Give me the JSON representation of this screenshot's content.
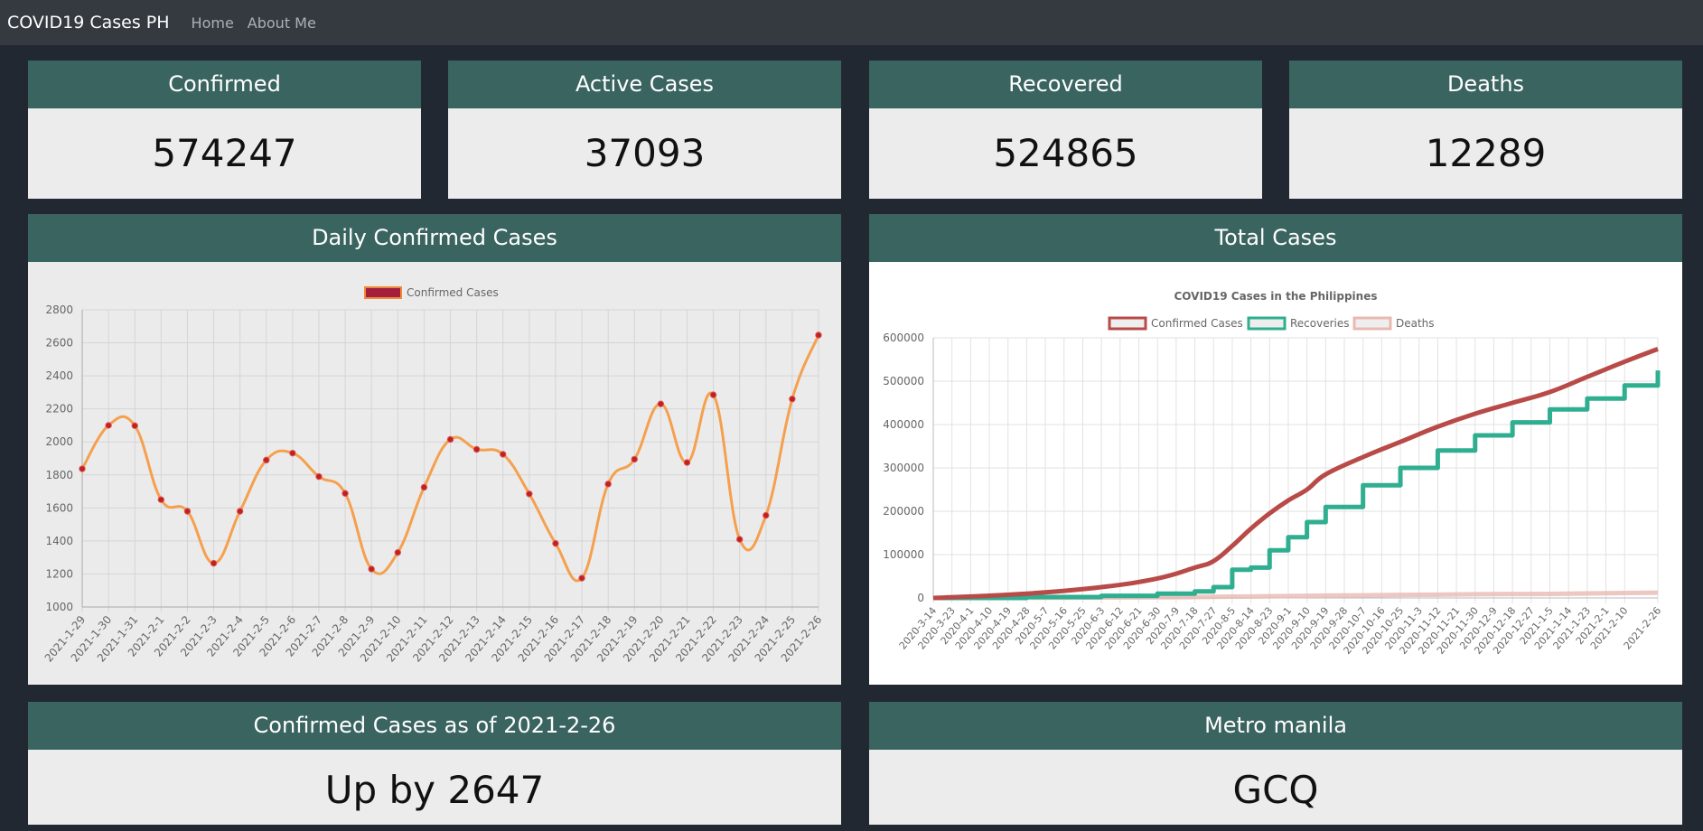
{
  "navbar": {
    "brand": "COVID19 Cases PH",
    "links": [
      "Home",
      "About Me"
    ]
  },
  "stats": [
    {
      "title": "Confirmed",
      "value": "574247"
    },
    {
      "title": "Active Cases",
      "value": "37093"
    },
    {
      "title": "Recovered",
      "value": "524865"
    },
    {
      "title": "Deaths",
      "value": "12289"
    }
  ],
  "daily_card": {
    "title": "Daily Confirmed Cases"
  },
  "total_card": {
    "title": "Total Cases"
  },
  "bottom": [
    {
      "title": "Confirmed Cases as of 2021-2-26",
      "value": "Up by 2647"
    },
    {
      "title": "Metro manila",
      "value": "GCQ"
    }
  ],
  "colors": {
    "page_bg": "#222831",
    "navbar_bg": "#343a40",
    "card_header": "#3a6460",
    "daily_line": "#f5a04e",
    "daily_point": "#c0211f",
    "confirmed_line": "#b84a47",
    "recoveries_line": "#2fae90",
    "deaths_line": "#e9b9b1"
  },
  "chart_data": [
    {
      "type": "line",
      "legend": [
        "Confirmed Cases"
      ],
      "categories": [
        "2021-1-29",
        "2021-1-30",
        "2021-1-31",
        "2021-2-1",
        "2021-2-2",
        "2021-2-3",
        "2021-2-4",
        "2021-2-5",
        "2021-2-6",
        "2021-2-7",
        "2021-2-8",
        "2021-2-9",
        "2021-2-10",
        "2021-2-11",
        "2021-2-12",
        "2021-2-13",
        "2021-2-14",
        "2021-2-15",
        "2021-2-16",
        "2021-2-17",
        "2021-2-18",
        "2021-2-19",
        "2021-2-20",
        "2021-2-21",
        "2021-2-22",
        "2021-2-23",
        "2021-2-24",
        "2021-2-25",
        "2021-2-26"
      ],
      "series": [
        {
          "name": "Confirmed Cases",
          "values": [
            1837,
            2100,
            2098,
            1650,
            1580,
            1265,
            1580,
            1890,
            1932,
            1790,
            1688,
            1230,
            1330,
            1725,
            2015,
            1955,
            1925,
            1685,
            1385,
            1175,
            1745,
            1895,
            2230,
            1875,
            2285,
            1410,
            1555,
            2260,
            2647
          ]
        }
      ],
      "ylim": [
        1000,
        2800
      ],
      "yticks": [
        1000,
        1200,
        1400,
        1600,
        1800,
        2000,
        2200,
        2400,
        2600,
        2800
      ],
      "grid": true,
      "legend_position": "top"
    },
    {
      "type": "line",
      "title": "COVID19 Cases in the Philippines",
      "legend": [
        "Confirmed Cases",
        "Recoveries",
        "Deaths"
      ],
      "legend_position": "top",
      "grid": true,
      "ylim": [
        0,
        600000
      ],
      "yticks": [
        0,
        100000,
        200000,
        300000,
        400000,
        500000,
        600000
      ],
      "tick_labels": [
        "2020-3-14",
        "2020-3-23",
        "2020-4-1",
        "2020-4-10",
        "2020-4-19",
        "2020-4-28",
        "2020-5-7",
        "2020-5-16",
        "2020-5-25",
        "2020-6-3",
        "2020-6-12",
        "2020-6-21",
        "2020-6-30",
        "2020-7-9",
        "2020-7-18",
        "2020-7-27",
        "2020-8-5",
        "2020-8-14",
        "2020-8-23",
        "2020-9-1",
        "2020-9-10",
        "2020-9-19",
        "2020-9-28",
        "2020-10-7",
        "2020-10-16",
        "2020-10-25",
        "2020-11-3",
        "2020-11-12",
        "2020-11-21",
        "2020-11-30",
        "2020-12-9",
        "2020-12-18",
        "2020-12-27",
        "2021-1-5",
        "2021-1-14",
        "2021-1-23",
        "2021-2-1",
        "2021-2-10",
        "2021-2-26"
      ],
      "x": [
        "2020-3-14",
        "2020-4-28",
        "2020-6-3",
        "2020-6-30",
        "2020-7-18",
        "2020-7-27",
        "2020-8-5",
        "2020-8-14",
        "2020-8-23",
        "2020-9-1",
        "2020-9-10",
        "2020-9-19",
        "2020-10-7",
        "2020-10-25",
        "2020-11-12",
        "2020-11-30",
        "2020-12-18",
        "2021-1-5",
        "2021-1-23",
        "2021-2-10",
        "2021-2-26"
      ],
      "series": [
        {
          "name": "Confirmed Cases",
          "values": [
            0,
            10000,
            25000,
            45000,
            70000,
            85000,
            120000,
            160000,
            195000,
            225000,
            250000,
            285000,
            325000,
            360000,
            395000,
            425000,
            450000,
            475000,
            510000,
            545000,
            574247
          ]
        },
        {
          "name": "Recoveries",
          "values": [
            0,
            2000,
            5000,
            10000,
            15000,
            25000,
            65000,
            70000,
            110000,
            140000,
            175000,
            210000,
            260000,
            300000,
            340000,
            375000,
            405000,
            435000,
            460000,
            490000,
            524865
          ]
        },
        {
          "name": "Deaths",
          "values": [
            0,
            600,
            1000,
            1500,
            2000,
            2500,
            3000,
            3500,
            4000,
            4500,
            5000,
            5500,
            6000,
            7000,
            7500,
            8500,
            9000,
            9500,
            10500,
            11500,
            12289
          ]
        }
      ]
    }
  ]
}
